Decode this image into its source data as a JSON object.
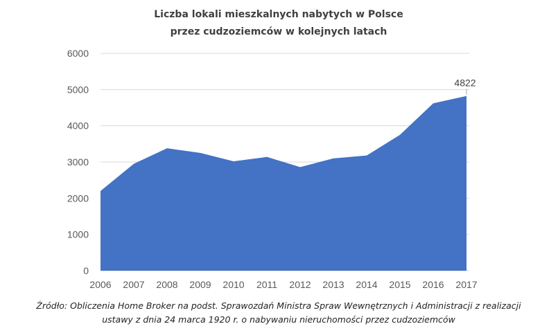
{
  "chart_data": {
    "type": "area",
    "title": [
      "Liczba lokali mieszkalnych nabytych w Polsce",
      "przez cudzoziemców w kolejnych latach"
    ],
    "x": [
      "2006",
      "2007",
      "2008",
      "2009",
      "2010",
      "2011",
      "2012",
      "2013",
      "2014",
      "2015",
      "2016",
      "2017"
    ],
    "series": [
      {
        "name": "Liczba lokali",
        "values": [
          2200,
          2950,
          3380,
          3250,
          3020,
          3140,
          2860,
          3100,
          3180,
          3750,
          4620,
          4822
        ],
        "color": "#4472c4"
      }
    ],
    "data_labels": [
      {
        "index": 11,
        "text": "4822"
      }
    ],
    "ylim": [
      0,
      6000
    ],
    "yticks": [
      "0",
      "1000",
      "2000",
      "3000",
      "4000",
      "5000",
      "6000"
    ],
    "grid": true,
    "xlabel": "",
    "ylabel": "",
    "source": [
      "Źródło: Obliczenia Home Broker na podst. Sprawozdań Ministra Spraw Wewnętrznych i Administracji z realizacji",
      "ustawy z dnia 24 marca 1920 r. o nabywaniu nieruchomości przez cudzoziemców"
    ]
  }
}
